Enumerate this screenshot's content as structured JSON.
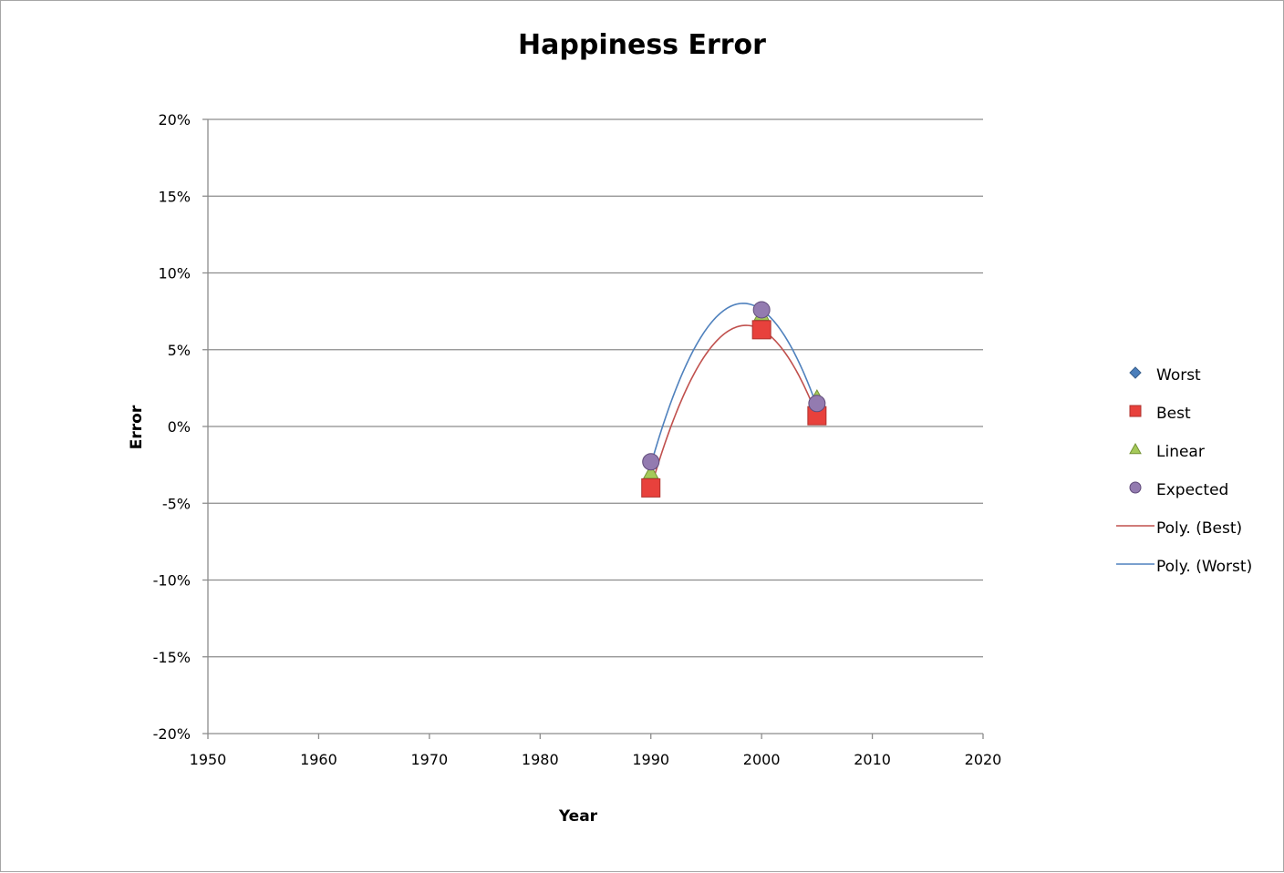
{
  "chart_data": {
    "type": "scatter",
    "title": "Happiness Error",
    "xlabel": "Year",
    "ylabel": "Error",
    "xlim": [
      1950,
      2020
    ],
    "ylim": [
      -0.2,
      0.2
    ],
    "x_ticks": [
      1950,
      1960,
      1970,
      1980,
      1990,
      2000,
      2010,
      2020
    ],
    "x_tick_labels": [
      "1950",
      "1960",
      "1970",
      "1980",
      "1990",
      "2000",
      "2010",
      "2020"
    ],
    "y_ticks": [
      -0.2,
      -0.15,
      -0.1,
      -0.05,
      0,
      0.05,
      0.1,
      0.15,
      0.2
    ],
    "y_tick_labels": [
      "-20%",
      "-15%",
      "-10%",
      "-5%",
      "0%",
      "5%",
      "10%",
      "15%",
      "20%"
    ],
    "grid": "horizontal",
    "legend_position": "right",
    "series": [
      {
        "name": "Worst",
        "marker": "diamond",
        "color": "#4a7ebb",
        "x": [
          1990,
          2000,
          2005
        ],
        "y": [
          -0.025,
          0.076,
          0.013
        ]
      },
      {
        "name": "Best",
        "marker": "square",
        "color": "#e8413c",
        "x": [
          1990,
          2000,
          2005
        ],
        "y": [
          -0.04,
          0.063,
          0.007
        ]
      },
      {
        "name": "Linear",
        "marker": "triangle",
        "color": "#9bc346",
        "x": [
          1990,
          2000,
          2005
        ],
        "y": [
          -0.03,
          0.073,
          0.019
        ]
      },
      {
        "name": "Expected",
        "marker": "circle",
        "color": "#8064a2",
        "x": [
          1990,
          2000,
          2005
        ],
        "y": [
          -0.023,
          0.076,
          0.015
        ]
      }
    ],
    "trendlines": [
      {
        "name": "Poly. (Best)",
        "color": "#c0504d",
        "of_series": "Best",
        "order": 2
      },
      {
        "name": "Poly. (Worst)",
        "color": "#4f81bd",
        "of_series": "Worst",
        "order": 2
      }
    ]
  }
}
